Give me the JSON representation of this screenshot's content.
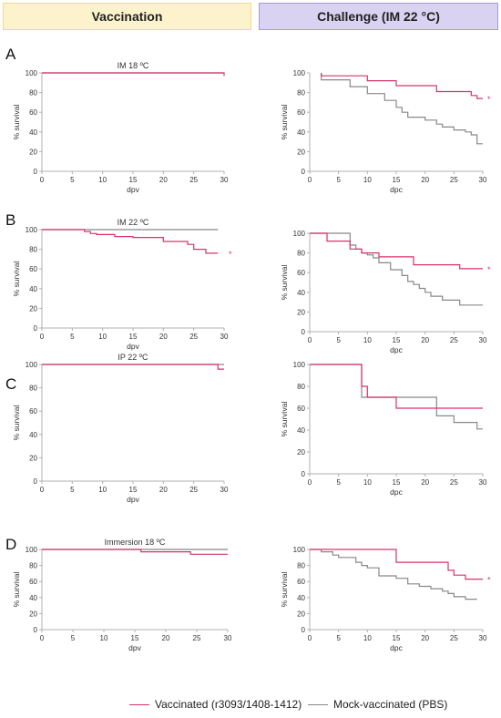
{
  "header": {
    "left_title": "Vaccination",
    "right_title": "Challenge (IM 22 °C)",
    "left_bg": "#fcf3cd",
    "left_border": "#f0dc86",
    "right_bg": "#d9d2f0",
    "right_border": "#a99ad8"
  },
  "legend": {
    "vaccinated_label": "Vaccinated (r3093/1408-1412)",
    "mock_label": "Mock-vaccinated (PBS)",
    "vaccinated_color": "#d6336c",
    "mock_color": "#888888"
  },
  "panels": [
    {
      "letter": "A"
    },
    {
      "letter": "B"
    },
    {
      "letter": "C"
    },
    {
      "letter": "D"
    }
  ],
  "chart_data": [
    {
      "id": "A-vacc",
      "type": "line",
      "title": "IM 18 ºC",
      "xlabel": "dpv",
      "ylabel": "% survival",
      "xlim": [
        0,
        30
      ],
      "ylim": [
        0,
        100
      ],
      "xticks": [
        0,
        5,
        10,
        15,
        20,
        25,
        30
      ],
      "yticks": [
        0,
        20,
        40,
        60,
        80,
        100
      ],
      "series": [
        {
          "name": "Mock-vaccinated (PBS)",
          "color": "#888888",
          "x": [
            0,
            30
          ],
          "y": [
            100,
            100
          ]
        },
        {
          "name": "Vaccinated (r3093/1408-1412)",
          "color": "#d6336c",
          "x": [
            0,
            30,
            30
          ],
          "y": [
            100,
            100,
            97
          ]
        }
      ],
      "annotation": ""
    },
    {
      "id": "A-chal",
      "type": "line",
      "title": "",
      "xlabel": "dpc",
      "ylabel": "% survival",
      "xlim": [
        0,
        30
      ],
      "ylim": [
        0,
        100
      ],
      "xticks": [
        0,
        5,
        10,
        15,
        20,
        25,
        30
      ],
      "yticks": [
        0,
        20,
        40,
        60,
        80,
        100
      ],
      "series": [
        {
          "name": "Mock-vaccinated (PBS)",
          "color": "#888888",
          "x": [
            2,
            2,
            7,
            7,
            10,
            10,
            13,
            13,
            15,
            15,
            16,
            16,
            17,
            17,
            20,
            20,
            22,
            22,
            23,
            23,
            25,
            25,
            27,
            27,
            28,
            28,
            29,
            29,
            30
          ],
          "y": [
            100,
            93,
            93,
            86,
            86,
            79,
            79,
            72,
            72,
            65,
            65,
            60,
            60,
            55,
            55,
            52,
            52,
            48,
            48,
            45,
            45,
            42,
            42,
            40,
            40,
            37,
            37,
            28,
            28
          ]
        },
        {
          "name": "Vaccinated (r3093/1408-1412)",
          "color": "#d6336c",
          "x": [
            2,
            2,
            10,
            10,
            15,
            15,
            22,
            22,
            28,
            28,
            29,
            29,
            30
          ],
          "y": [
            100,
            97,
            97,
            92,
            92,
            87,
            87,
            81,
            81,
            77,
            77,
            74,
            74
          ]
        }
      ],
      "annotation": "*"
    },
    {
      "id": "B-vacc",
      "type": "line",
      "title": "IM 22 ºC",
      "xlabel": "dpv",
      "ylabel": "% survival",
      "xlim": [
        0,
        30
      ],
      "ylim": [
        0,
        100
      ],
      "xticks": [
        0,
        5,
        10,
        15,
        20,
        25,
        30
      ],
      "yticks": [
        0,
        20,
        40,
        60,
        80,
        100
      ],
      "series": [
        {
          "name": "Mock-vaccinated (PBS)",
          "color": "#888888",
          "x": [
            0,
            29
          ],
          "y": [
            100,
            100
          ]
        },
        {
          "name": "Vaccinated (r3093/1408-1412)",
          "color": "#d6336c",
          "x": [
            0,
            7,
            7,
            8,
            8,
            9,
            9,
            12,
            12,
            15,
            15,
            20,
            20,
            24,
            24,
            25,
            25,
            27,
            27,
            29
          ],
          "y": [
            100,
            100,
            98,
            98,
            96,
            96,
            95,
            95,
            93,
            93,
            92,
            92,
            88,
            88,
            85,
            85,
            80,
            80,
            76,
            76
          ]
        }
      ],
      "annotation": "*"
    },
    {
      "id": "B-chal",
      "type": "line",
      "title": "",
      "xlabel": "dpc",
      "ylabel": "% survival",
      "xlim": [
        0,
        30
      ],
      "ylim": [
        0,
        100
      ],
      "xticks": [
        0,
        5,
        10,
        15,
        20,
        25,
        30
      ],
      "yticks": [
        0,
        20,
        40,
        60,
        80,
        100
      ],
      "series": [
        {
          "name": "Mock-vaccinated (PBS)",
          "color": "#888888",
          "x": [
            0,
            7,
            7,
            8,
            8,
            9,
            9,
            10,
            10,
            11,
            11,
            12,
            12,
            14,
            14,
            16,
            16,
            17,
            17,
            18,
            18,
            19,
            19,
            20,
            20,
            21,
            21,
            23,
            23,
            26,
            26,
            30
          ],
          "y": [
            100,
            100,
            88,
            88,
            84,
            84,
            80,
            80,
            78,
            78,
            75,
            75,
            70,
            70,
            63,
            63,
            57,
            57,
            51,
            51,
            48,
            48,
            44,
            44,
            40,
            40,
            36,
            36,
            32,
            32,
            27,
            27
          ]
        },
        {
          "name": "Vaccinated (r3093/1408-1412)",
          "color": "#d6336c",
          "x": [
            0,
            3,
            3,
            7,
            7,
            9,
            9,
            12,
            12,
            18,
            18,
            26,
            26,
            30
          ],
          "y": [
            100,
            100,
            92,
            92,
            84,
            84,
            80,
            80,
            76,
            76,
            68,
            68,
            64,
            64
          ]
        }
      ],
      "annotation": "*"
    },
    {
      "id": "C-vacc",
      "type": "line",
      "title": "IP 22 ºC",
      "xlabel": "dpv",
      "ylabel": "% survival",
      "xlim": [
        0,
        30
      ],
      "ylim": [
        0,
        100
      ],
      "xticks": [
        0,
        5,
        10,
        15,
        20,
        25,
        30
      ],
      "yticks": [
        0,
        20,
        40,
        60,
        80,
        100
      ],
      "series": [
        {
          "name": "Mock-vaccinated (PBS)",
          "color": "#888888",
          "x": [
            0,
            30
          ],
          "y": [
            100,
            100
          ]
        },
        {
          "name": "Vaccinated (r3093/1408-1412)",
          "color": "#d6336c",
          "x": [
            0,
            29,
            29,
            30
          ],
          "y": [
            100,
            100,
            96,
            96
          ]
        }
      ],
      "annotation": ""
    },
    {
      "id": "C-chal",
      "type": "line",
      "title": "",
      "xlabel": "dpc",
      "ylabel": "% survival",
      "xlim": [
        0,
        30
      ],
      "ylim": [
        0,
        100
      ],
      "xticks": [
        0,
        5,
        10,
        15,
        20,
        25,
        30
      ],
      "yticks": [
        0,
        20,
        40,
        60,
        80,
        100
      ],
      "series": [
        {
          "name": "Mock-vaccinated (PBS)",
          "color": "#888888",
          "x": [
            0,
            9,
            9,
            15,
            15,
            22,
            22,
            25,
            25,
            29,
            29,
            30
          ],
          "y": [
            100,
            100,
            70,
            70,
            70,
            70,
            53,
            53,
            47,
            47,
            41,
            41
          ]
        },
        {
          "name": "Vaccinated (r3093/1408-1412)",
          "color": "#d6336c",
          "x": [
            0,
            9,
            9,
            10,
            10,
            15,
            15,
            30
          ],
          "y": [
            100,
            100,
            80,
            80,
            70,
            70,
            60,
            60
          ]
        }
      ],
      "annotation": ""
    },
    {
      "id": "D-vacc",
      "type": "line",
      "title": "Immersion 18 ºC",
      "xlabel": "dpv",
      "ylabel": "% survival",
      "xlim": [
        0,
        30
      ],
      "ylim": [
        0,
        100
      ],
      "xticks": [
        0,
        5,
        10,
        15,
        20,
        25,
        30
      ],
      "yticks": [
        0,
        20,
        40,
        60,
        80,
        100
      ],
      "series": [
        {
          "name": "Mock-vaccinated (PBS)",
          "color": "#888888",
          "x": [
            0,
            30
          ],
          "y": [
            100,
            100
          ]
        },
        {
          "name": "Vaccinated (r3093/1408-1412)",
          "color": "#d6336c",
          "x": [
            0,
            16,
            16,
            24,
            24,
            30
          ],
          "y": [
            100,
            100,
            97,
            97,
            94,
            94
          ]
        }
      ],
      "annotation": ""
    },
    {
      "id": "D-chal",
      "type": "line",
      "title": "",
      "xlabel": "dpc",
      "ylabel": "% survival",
      "xlim": [
        0,
        30
      ],
      "ylim": [
        0,
        100
      ],
      "xticks": [
        0,
        5,
        10,
        15,
        20,
        25,
        30
      ],
      "yticks": [
        0,
        20,
        40,
        60,
        80,
        100
      ],
      "series": [
        {
          "name": "Mock-vaccinated (PBS)",
          "color": "#888888",
          "x": [
            0,
            2,
            2,
            4,
            4,
            5,
            5,
            8,
            8,
            9,
            9,
            10,
            10,
            12,
            12,
            15,
            15,
            17,
            17,
            19,
            19,
            21,
            21,
            23,
            23,
            24,
            24,
            25,
            25,
            27,
            27,
            28,
            28,
            29
          ],
          "y": [
            100,
            100,
            97,
            97,
            93,
            93,
            90,
            90,
            84,
            84,
            80,
            80,
            77,
            77,
            67,
            67,
            64,
            64,
            57,
            57,
            54,
            54,
            51,
            51,
            48,
            48,
            45,
            45,
            41,
            41,
            38,
            38,
            38,
            38
          ]
        },
        {
          "name": "Vaccinated (r3093/1408-1412)",
          "color": "#d6336c",
          "x": [
            0,
            15,
            15,
            24,
            24,
            25,
            25,
            27,
            27,
            30
          ],
          "y": [
            100,
            100,
            84,
            84,
            74,
            74,
            68,
            68,
            63,
            63
          ]
        }
      ],
      "annotation": "*"
    }
  ]
}
